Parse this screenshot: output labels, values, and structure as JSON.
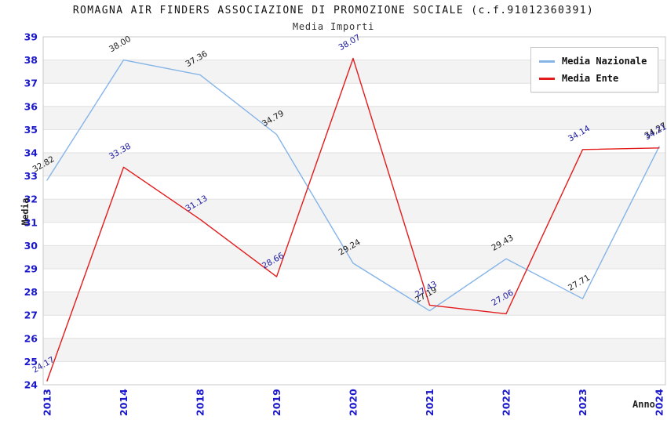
{
  "chart_data": {
    "type": "line",
    "title": "ROMAGNA AIR FINDERS ASSOCIAZIONE DI PROMOZIONE SOCIALE (c.f.91012360391)",
    "subtitle": "Media Importi",
    "xlabel": "Anno",
    "ylabel": "Media",
    "categories": [
      "2013",
      "2014",
      "2018",
      "2019",
      "2020",
      "2021",
      "2022",
      "2023",
      "2024"
    ],
    "series": [
      {
        "name": "Media Nazionale",
        "color": "#85b4e8",
        "label_color": "#1a1a1a",
        "values": [
          32.82,
          38.0,
          37.36,
          34.79,
          29.24,
          27.19,
          29.43,
          27.71,
          34.27
        ]
      },
      {
        "name": "Media Ente",
        "color": "#e31b1b",
        "label_color": "#1d1aa0",
        "values": [
          24.17,
          33.38,
          31.13,
          28.66,
          38.07,
          27.43,
          27.06,
          34.14,
          34.21
        ]
      }
    ],
    "ylim": [
      24,
      39
    ],
    "y_tick_step": 1,
    "grid": true,
    "legend_position": "top-right",
    "axis_tick_color": "#1a17cc",
    "band_colors": [
      "#ffffff",
      "#f3f3f3"
    ],
    "grid_color": "#e1e1e1",
    "border_color": "#c8c8c8"
  }
}
